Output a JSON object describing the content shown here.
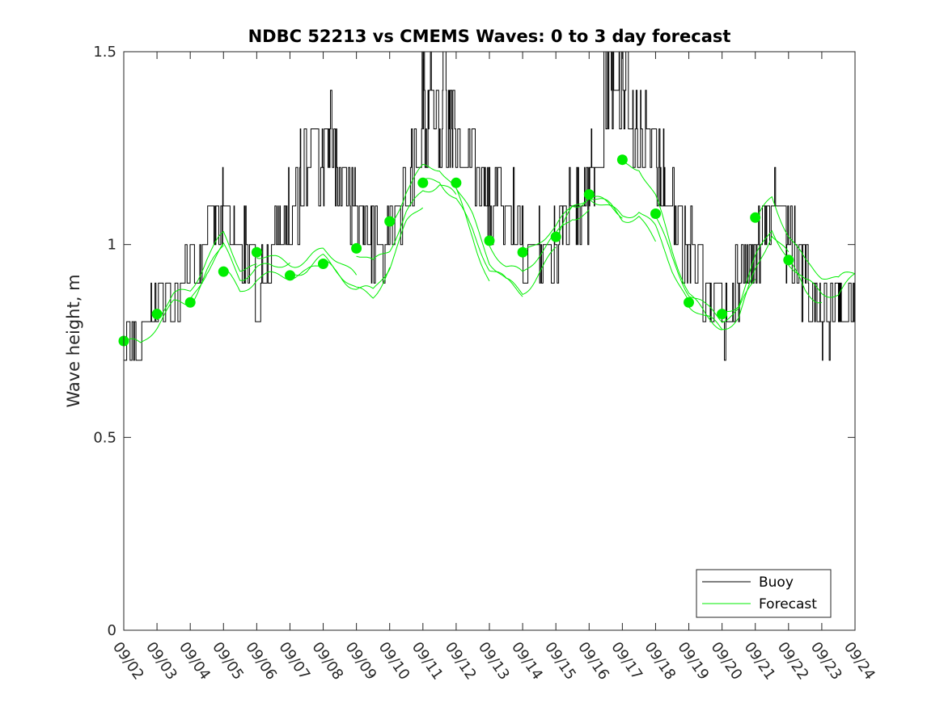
{
  "chart_data": {
    "type": "line",
    "title": "NDBC 52213 vs CMEMS Waves: 0 to 3 day forecast",
    "xlabel": "",
    "ylabel": "Wave height, m",
    "xlim": [
      0,
      22
    ],
    "ylim": [
      0,
      1.5
    ],
    "grid": false,
    "legend_position": "bottom-right",
    "x_tick_labels": [
      "09/02",
      "09/03",
      "09/04",
      "09/05",
      "09/06",
      "09/07",
      "09/08",
      "09/09",
      "09/10",
      "09/11",
      "09/12",
      "09/13",
      "09/14",
      "09/15",
      "09/16",
      "09/17",
      "09/18",
      "09/19",
      "09/20",
      "09/21",
      "09/22",
      "09/23",
      "09/24"
    ],
    "y_ticks": [
      0,
      0.5,
      1,
      1.5
    ],
    "y_tick_labels": [
      "0",
      "0.5",
      "1",
      "1.5"
    ],
    "colors": {
      "buoy": "#000000",
      "forecast": "#00ee00",
      "axis": "#262626"
    },
    "legend": [
      {
        "label": "Buoy",
        "color": "#000000"
      },
      {
        "label": "Forecast",
        "color": "#00ee00"
      }
    ],
    "buoy_envelope": {
      "name": "Buoy",
      "x": [
        0,
        0.5,
        1,
        1.5,
        2,
        2.5,
        3,
        3.5,
        4,
        4.5,
        5,
        5.5,
        6,
        6.5,
        7,
        7.5,
        8,
        8.5,
        9,
        9.5,
        10,
        10.5,
        11,
        11.5,
        12,
        12.5,
        13,
        13.5,
        14,
        14.5,
        15,
        15.5,
        16,
        16.5,
        17,
        17.5,
        18,
        18.5,
        19,
        19.5,
        20,
        20.5,
        21,
        21.5,
        22
      ],
      "low": [
        0.7,
        0.7,
        0.8,
        0.8,
        0.8,
        0.9,
        1.0,
        0.9,
        0.8,
        0.9,
        1.0,
        1.0,
        1.1,
        1.1,
        1.0,
        0.9,
        0.9,
        1.0,
        1.2,
        1.2,
        1.2,
        1.1,
        1.0,
        1.0,
        0.9,
        0.9,
        0.9,
        1.0,
        1.0,
        1.2,
        1.3,
        1.2,
        1.1,
        1.0,
        0.9,
        0.8,
        0.7,
        0.8,
        0.9,
        1.0,
        0.9,
        0.8,
        0.7,
        0.8,
        0.8
      ],
      "high": [
        0.8,
        0.8,
        0.9,
        1.0,
        1.0,
        1.1,
        1.2,
        1.1,
        1.0,
        1.1,
        1.2,
        1.3,
        1.4,
        1.3,
        1.2,
        1.1,
        1.1,
        1.2,
        1.5,
        1.5,
        1.4,
        1.3,
        1.2,
        1.2,
        1.1,
        1.1,
        1.1,
        1.2,
        1.3,
        1.5,
        1.5,
        1.4,
        1.3,
        1.2,
        1.1,
        1.0,
        0.9,
        1.0,
        1.1,
        1.2,
        1.1,
        1.0,
        0.9,
        0.9,
        0.9
      ]
    },
    "forecast_markers": {
      "name": "Forecast",
      "x": [
        0,
        1,
        2,
        3,
        4,
        5,
        6,
        7,
        8,
        9,
        10,
        11,
        12,
        13,
        14,
        15,
        16,
        17,
        18,
        19,
        20
      ],
      "y": [
        0.75,
        0.82,
        0.85,
        0.93,
        0.98,
        0.92,
        0.95,
        0.99,
        1.06,
        1.16,
        1.16,
        1.01,
        0.98,
        1.02,
        1.13,
        1.22,
        1.08,
        0.85,
        0.82,
        1.07,
        0.96
      ]
    },
    "forecast_guide": {
      "x": [
        0,
        0.5,
        1,
        1.5,
        2,
        2.5,
        3,
        3.5,
        4,
        4.5,
        5,
        5.5,
        6,
        6.5,
        7,
        7.5,
        8,
        8.5,
        9,
        9.5,
        10,
        10.5,
        11,
        11.5,
        12,
        12.5,
        13,
        13.5,
        14,
        14.5,
        15,
        15.5,
        16,
        16.5,
        17,
        17.5,
        18,
        18.5,
        19,
        19.5,
        20,
        20.5,
        21,
        21.5,
        22
      ],
      "y": [
        0.74,
        0.73,
        0.78,
        0.84,
        0.86,
        0.94,
        1.0,
        0.93,
        0.95,
        0.94,
        0.94,
        0.95,
        0.97,
        0.94,
        0.9,
        0.88,
        0.94,
        1.05,
        1.12,
        1.14,
        1.1,
        1.02,
        0.92,
        0.88,
        0.87,
        0.93,
        0.98,
        1.06,
        1.1,
        1.08,
        1.06,
        1.08,
        1.02,
        0.92,
        0.84,
        0.8,
        0.78,
        0.82,
        0.93,
        1.02,
        0.95,
        0.89,
        0.87,
        0.87,
        0.93
      ]
    }
  }
}
